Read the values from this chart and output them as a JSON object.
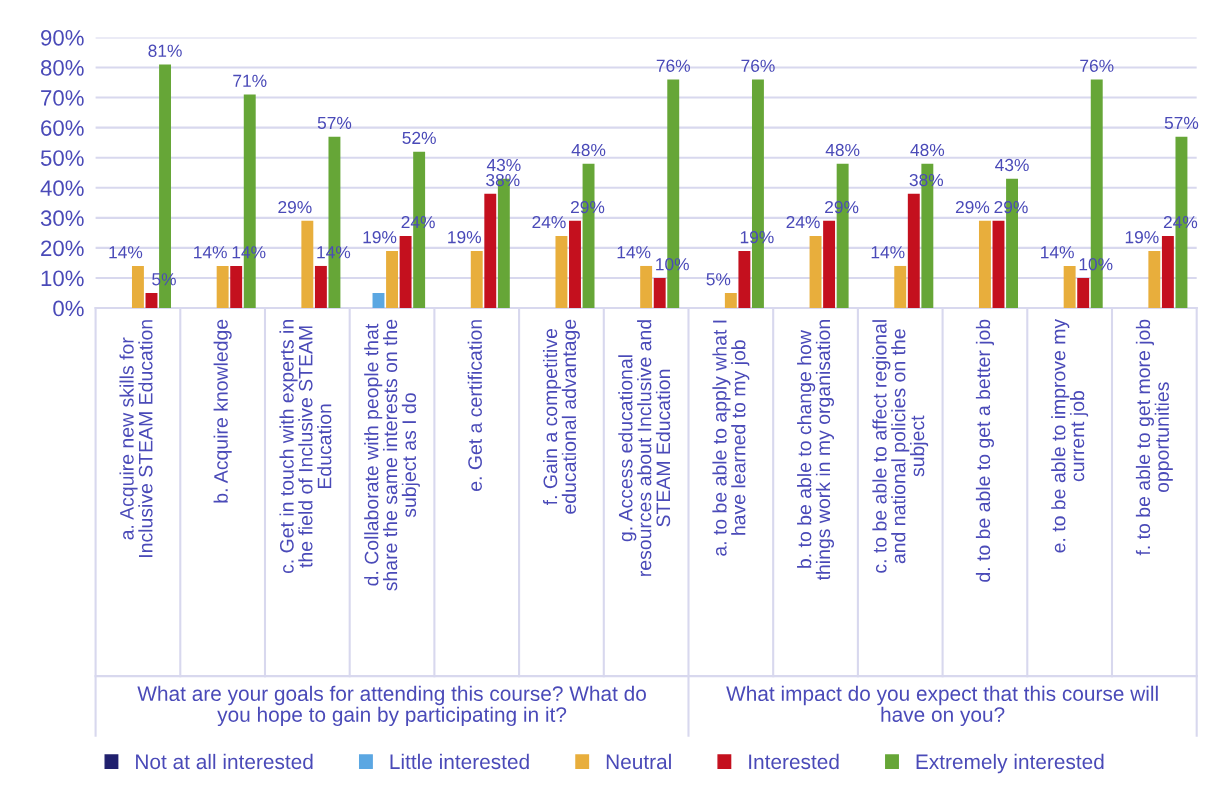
{
  "chart_data": {
    "type": "bar",
    "categories": [
      "a. Acquire new skills for\nInclusive STEAM Education",
      "b. Acquire knowledge",
      "c. Get in touch with experts in\nthe field of Inclusive STEAM\nEducation",
      "d. Collaborate with people that\nshare the same interests on the\nsubject as I do",
      "e. Get a certification",
      "f. Gain a competitive\neducational advantage",
      "g. Access educational\nresources about Inclusive and\nSTEAM Education",
      "a. to be able to apply what I\nhave learned to my job",
      "b. to be able to change how\nthings work in my organisation",
      "c. to be able to affect regional\nand national policies on the\nsubject",
      "d. to be able to get a better job",
      "e. to be able to improve my\ncurrent job",
      "f. to be able to get more job\nopportunities"
    ],
    "series": [
      {
        "name": "Not at all interested",
        "color": "#20206e",
        "values": [
          0,
          0,
          0,
          0,
          0,
          0,
          0,
          0,
          0,
          0,
          0,
          0,
          0
        ],
        "value_labels": [
          null,
          null,
          null,
          null,
          null,
          null,
          null,
          null,
          null,
          null,
          null,
          null,
          null
        ]
      },
      {
        "name": "Little interested",
        "color": "#5ba7e2",
        "values": [
          0,
          0,
          0,
          5,
          0,
          0,
          0,
          0,
          0,
          0,
          0,
          0,
          0
        ],
        "value_labels": [
          null,
          null,
          null,
          null,
          null,
          null,
          null,
          null,
          null,
          null,
          null,
          null,
          null
        ]
      },
      {
        "name": "Neutral",
        "color": "#e8ae3c",
        "values": [
          14,
          14,
          29,
          19,
          19,
          24,
          14,
          5,
          24,
          14,
          29,
          14,
          19
        ],
        "value_labels": [
          "14%",
          "14%",
          "29%",
          "19%",
          "19%",
          "24%",
          "14%",
          "5%",
          "24%",
          "14%",
          "29%",
          "14%",
          "19%"
        ]
      },
      {
        "name": "Interested",
        "color": "#c4101e",
        "values": [
          5,
          14,
          14,
          24,
          38,
          29,
          10,
          19,
          29,
          38,
          29,
          10,
          24
        ],
        "value_labels": [
          "5%",
          "14%",
          "14%",
          "24%",
          "38%",
          "29%",
          "10%",
          "19%",
          "29%",
          "38%",
          "29%",
          "10%",
          "24%"
        ]
      },
      {
        "name": "Extremely interested",
        "color": "#66a637",
        "values": [
          81,
          71,
          57,
          52,
          43,
          48,
          76,
          76,
          48,
          48,
          43,
          76,
          57
        ],
        "value_labels": [
          "81%",
          "71%",
          "57%",
          "52%",
          "43%",
          "48%",
          "76%",
          "76%",
          "48%",
          "48%",
          "43%",
          "76%",
          "57%"
        ]
      }
    ],
    "ylim": [
      0,
      90
    ],
    "yticks": [
      {
        "value": 0,
        "label": "0%"
      },
      {
        "value": 10,
        "label": "10%"
      },
      {
        "value": 20,
        "label": "20%"
      },
      {
        "value": 30,
        "label": "30%"
      },
      {
        "value": 40,
        "label": "40%"
      },
      {
        "value": 50,
        "label": "50%"
      },
      {
        "value": 60,
        "label": "60%"
      },
      {
        "value": 70,
        "label": "70%"
      },
      {
        "value": 80,
        "label": "80%"
      },
      {
        "value": 90,
        "label": "90%"
      }
    ],
    "annotations": [
      "What are your goals for attending this course? What do\nyou hope to gain by participating in it?",
      "What impact do you expect that this course will\nhave on you?"
    ],
    "grid": "y",
    "legend": "bottom"
  }
}
